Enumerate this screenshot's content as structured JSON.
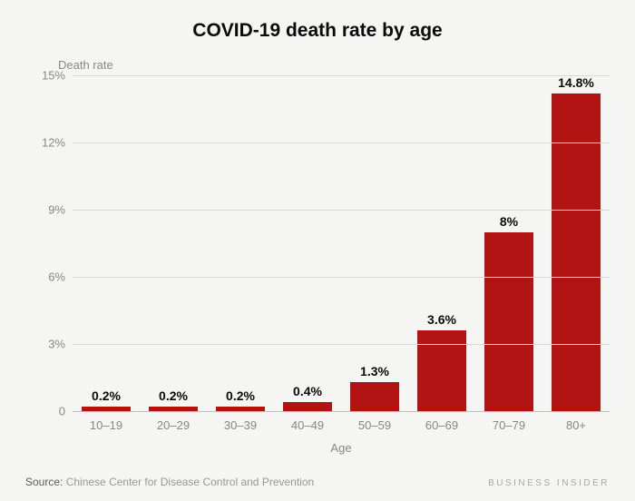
{
  "chart": {
    "type": "bar",
    "title": "COVID-19 death rate by age",
    "title_fontsize": 21,
    "y_axis_title": "Death rate",
    "x_axis_title": "Age",
    "categories": [
      "10–19",
      "20–29",
      "30–39",
      "40–49",
      "50–59",
      "60–69",
      "70–79",
      "80+"
    ],
    "values": [
      0.2,
      0.2,
      0.2,
      0.4,
      1.3,
      3.6,
      8,
      14.8
    ],
    "value_labels": [
      "0.2%",
      "0.2%",
      "0.2%",
      "0.4%",
      "1.3%",
      "3.6%",
      "8%",
      "14.8%"
    ],
    "bar_color": "#b21414",
    "ylim": [
      0,
      15
    ],
    "ytick_values": [
      0,
      3,
      6,
      9,
      12,
      15
    ],
    "ytick_labels": [
      "0",
      "3%",
      "6%",
      "9%",
      "12%",
      "15%"
    ],
    "background_color": "#f5f5f3",
    "grid_color": "#d9d9d6",
    "baseline_color": "#bfbfbc",
    "axis_text_color": "#878787",
    "label_text_color": "#0a0a0a",
    "axis_fontsize": 13,
    "value_label_fontsize": 14,
    "bar_width_ratio": 0.72
  },
  "footer": {
    "source_label": "Source:",
    "source_text": "Chinese Center for Disease Control and Prevention",
    "brand": "BUSINESS INSIDER"
  }
}
